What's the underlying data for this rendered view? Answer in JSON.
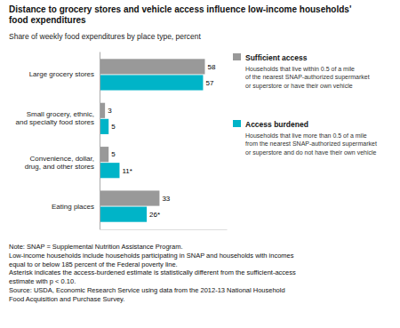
{
  "chart_data": {
    "type": "bar",
    "orientation": "horizontal",
    "title": "Distance to grocery stores and vehicle access influence low-income households'\nfood expenditures",
    "subtitle": "Share of weekly food expenditures by place type, percent",
    "categories": [
      "Large grocery stores",
      "Small grocery, ethnic,\nand specialty food stores",
      "Convenience, dollar,\ndrug, and other stores",
      "Eating places"
    ],
    "series": [
      {
        "name": "Sufficient access",
        "color": "#999999",
        "values": [
          58,
          3,
          5,
          33
        ],
        "description": "Households that live within 0.5 of a mile\nof the nearest SNAP-authorized supermarket\nor superstore or have their own vehicle"
      },
      {
        "name": "Access burdened",
        "color": "#00b4c8",
        "values": [
          57,
          5,
          11,
          26
        ],
        "value_labels": [
          "57",
          "5",
          "11*",
          "26*"
        ],
        "description": "Households that live more than 0.5 of a mile\nfrom the nearest SNAP-authorized supermarket\nor superstore and do not have their own vehicle"
      }
    ],
    "xlim": [
      0,
      70
    ],
    "data_labels": true,
    "tick_labels": "y",
    "legend": "right",
    "note": "Note: SNAP = Supplemental Nutrition Assistance Program.\nLow-income households include households participating in SNAP and households with incomes\nequal to or below 185 percent of the Federal poverty line.\nAsterisk indicates the access-burdened estimate is statistically different from the sufficient-access\nestimate with p < 0.10.\nSource: USDA, Economic Research Service using data from the 2012-13 National Household\nFood Acquisition and Purchase Survey."
  }
}
